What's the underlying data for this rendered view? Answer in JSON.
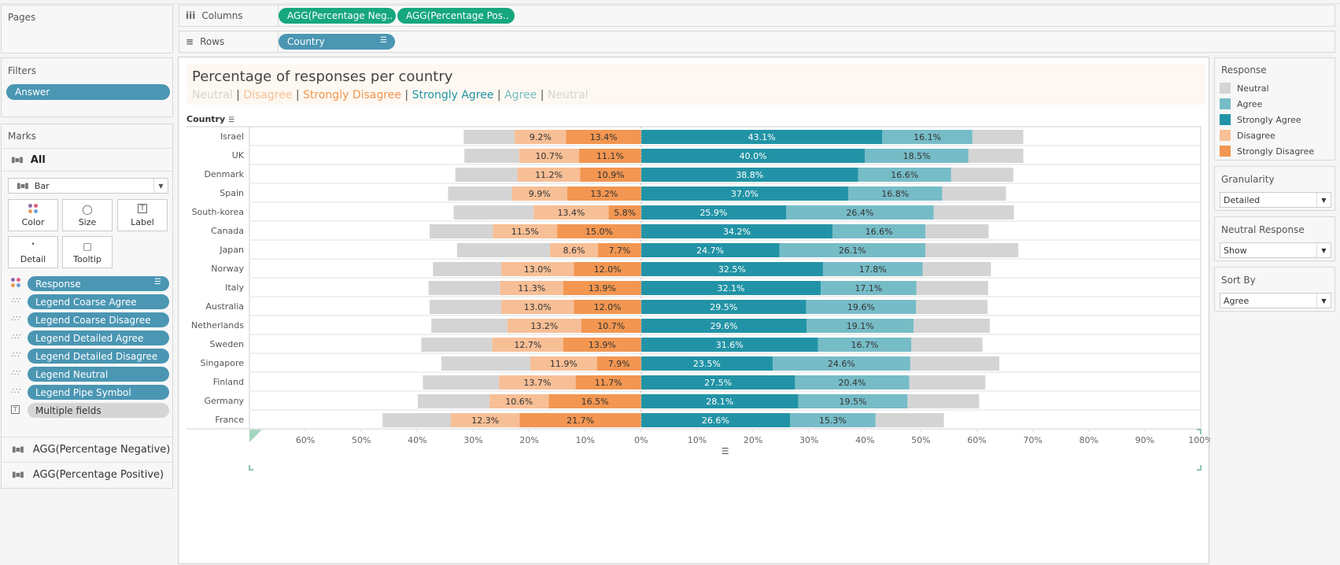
{
  "shelves": {
    "pages_label": "Pages",
    "columns_label": "Columns",
    "rows_label": "Rows",
    "columns_pills": [
      "AGG(Percentage Neg..",
      "AGG(Percentage Pos.."
    ],
    "rows_pills": [
      "Country"
    ]
  },
  "filters": {
    "title": "Filters",
    "items": [
      "Answer"
    ]
  },
  "marks": {
    "title": "Marks",
    "all_label": "All",
    "mark_type": "Bar",
    "buttons": [
      "Color",
      "Size",
      "Label",
      "Detail",
      "Tooltip"
    ],
    "fields": [
      {
        "label": "Response",
        "encoding": "color"
      },
      {
        "label": "Legend Coarse Agree",
        "encoding": "detail"
      },
      {
        "label": "Legend Coarse Disagree",
        "encoding": "detail"
      },
      {
        "label": "Legend Detailed Agree",
        "encoding": "detail"
      },
      {
        "label": "Legend Detailed Disagree",
        "encoding": "detail"
      },
      {
        "label": "Legend Neutral",
        "encoding": "detail"
      },
      {
        "label": "Legend Pipe Symbol",
        "encoding": "detail"
      },
      {
        "label": "Multiple fields",
        "encoding": "label"
      }
    ],
    "measures": [
      "AGG(Percentage Negative)",
      "AGG(Percentage Positive)"
    ]
  },
  "colors": {
    "neutral": "#d4d4d4",
    "agree": "#76bcc7",
    "strongly_agree": "#2293a6",
    "disagree": "#f7bf96",
    "strongly_disagree": "#f29651",
    "pill_green": "#16a77f",
    "pill_blue": "#4a96b3"
  },
  "legend": {
    "title": "Response",
    "items": [
      {
        "label": "Neutral",
        "color": "#d4d4d4"
      },
      {
        "label": "Agree",
        "color": "#76bcc7"
      },
      {
        "label": "Strongly Agree",
        "color": "#2293a6"
      },
      {
        "label": "Disagree",
        "color": "#f7bf96"
      },
      {
        "label": "Strongly Disagree",
        "color": "#f29651"
      }
    ]
  },
  "parameters": [
    {
      "title": "Granularity",
      "value": "Detailed"
    },
    {
      "title": "Neutral Response",
      "value": "Show"
    },
    {
      "title": "Sort By",
      "value": "Agree"
    }
  ],
  "chart_data": {
    "type": "bar",
    "subtype": "diverging-stacked",
    "title": "Percentage of responses per country",
    "subtitle_parts": [
      {
        "text": "Neutral",
        "color": "#d4d4d4"
      },
      {
        "text": " | ",
        "color": "#555555"
      },
      {
        "text": "Disagree",
        "color": "#f7bf96"
      },
      {
        "text": " | ",
        "color": "#555555"
      },
      {
        "text": "Strongly Disagree",
        "color": "#f29651"
      },
      {
        "text": " | ",
        "color": "#555555"
      },
      {
        "text": "Strongly Agree",
        "color": "#2293a6"
      },
      {
        "text": " | ",
        "color": "#555555"
      },
      {
        "text": "Agree",
        "color": "#76bcc7"
      },
      {
        "text": " | ",
        "color": "#555555"
      },
      {
        "text": "Neutral",
        "color": "#d4d4d4"
      }
    ],
    "row_header": "Country",
    "xlabel": "",
    "xlim": [
      -70,
      100
    ],
    "xticks": [
      -60,
      -50,
      -40,
      -30,
      -20,
      -10,
      0,
      10,
      20,
      30,
      40,
      50,
      60,
      70,
      80,
      90,
      100
    ],
    "xtick_labels": [
      "60%",
      "50%",
      "40%",
      "30%",
      "20%",
      "10%",
      "0%",
      "10%",
      "20%",
      "30%",
      "40%",
      "50%",
      "60%",
      "70%",
      "80%",
      "90%",
      "100%"
    ],
    "categories": [
      "Israel",
      "UK",
      "Denmark",
      "Spain",
      "South-korea",
      "Canada",
      "Japan",
      "Norway",
      "Italy",
      "Australia",
      "Netherlands",
      "Sweden",
      "Singapore",
      "Finland",
      "Germany",
      "France"
    ],
    "series": [
      {
        "name": "Strongly Disagree",
        "side": "negative",
        "labeled": true,
        "values": [
          13.4,
          11.1,
          10.9,
          13.2,
          5.8,
          15.0,
          7.7,
          12.0,
          13.9,
          12.0,
          10.7,
          13.9,
          7.9,
          11.7,
          16.5,
          21.7
        ]
      },
      {
        "name": "Disagree",
        "side": "negative",
        "labeled": true,
        "values": [
          9.2,
          10.7,
          11.2,
          9.9,
          13.4,
          11.5,
          8.6,
          13.0,
          11.3,
          13.0,
          13.2,
          12.7,
          11.9,
          13.7,
          10.6,
          12.3
        ]
      },
      {
        "name": "Neutral",
        "side": "split",
        "labeled": false,
        "values": [
          18.2,
          19.6,
          22.2,
          22.8,
          28.6,
          22.6,
          33.2,
          24.4,
          25.6,
          25.6,
          27.2,
          25.4,
          31.8,
          27.2,
          25.6,
          24.4
        ]
      },
      {
        "name": "Strongly Agree",
        "side": "positive",
        "labeled": true,
        "values": [
          43.1,
          40.0,
          38.8,
          37.0,
          25.9,
          34.2,
          24.7,
          32.5,
          32.1,
          29.5,
          29.6,
          31.6,
          23.5,
          27.5,
          28.1,
          26.6
        ]
      },
      {
        "name": "Agree",
        "side": "positive",
        "labeled": true,
        "values": [
          16.1,
          18.5,
          16.6,
          16.8,
          26.4,
          16.6,
          26.1,
          17.8,
          17.1,
          19.6,
          19.1,
          16.7,
          24.6,
          20.4,
          19.5,
          15.3
        ]
      }
    ],
    "grid": false,
    "legend_position": "right"
  }
}
